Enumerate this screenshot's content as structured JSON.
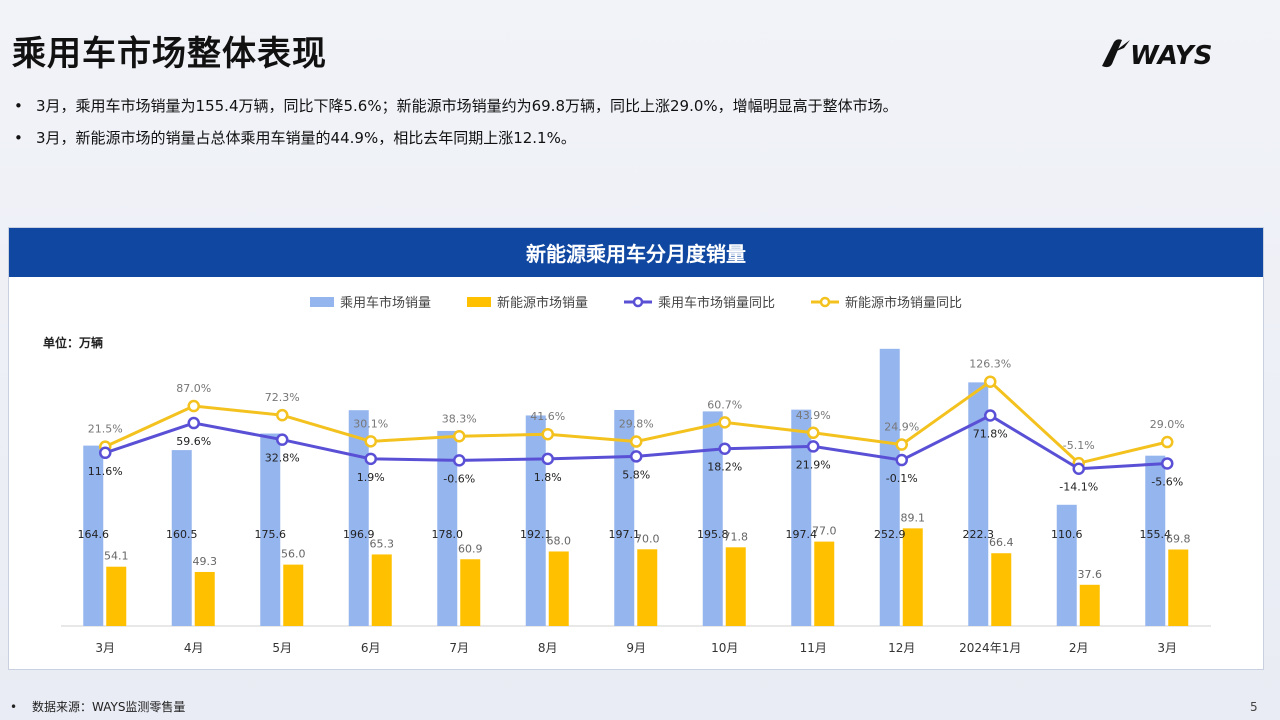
{
  "page": {
    "title": "乘用车市场整体表现",
    "logo_text": "WAYS",
    "bullets": [
      "3月，乘用车市场销量为155.4万辆，同比下降5.6%；新能源市场销量约为69.8万辆，同比上涨29.0%，增幅明显高于整体市场。",
      "3月，新能源市场的销量占总体乘用车销量的44.9%，相比去年同期上涨12.1%。"
    ],
    "source": "数据来源：WAYS监测零售量",
    "page_number": "5",
    "bullet_glyph": "•"
  },
  "colors": {
    "header_bg": "#0f47a1",
    "total_bar": "#95b5ee",
    "nev_bar": "#ffc000",
    "total_line": "#5a50d6",
    "nev_line": "#f4c21f"
  },
  "chart_data": {
    "type": "bar",
    "title": "新能源乘用车分月度销量",
    "unit_label": "单位：万辆",
    "categories": [
      "3月",
      "4月",
      "5月",
      "6月",
      "7月",
      "8月",
      "9月",
      "10月",
      "11月",
      "12月",
      "2024年1月",
      "2月",
      "3月"
    ],
    "series": [
      {
        "name": "乘用车市场销量",
        "kind": "bar",
        "values": [
          164.6,
          160.5,
          175.6,
          196.9,
          178.0,
          192.1,
          197.1,
          195.8,
          197.4,
          252.9,
          222.3,
          110.6,
          155.4
        ]
      },
      {
        "name": "新能源市场销量",
        "kind": "bar",
        "values": [
          54.1,
          49.3,
          56.0,
          65.3,
          60.9,
          68.0,
          70.0,
          71.8,
          77.0,
          89.1,
          66.4,
          37.6,
          69.8
        ]
      },
      {
        "name": "乘用车市场销量同比",
        "kind": "line",
        "unit": "%",
        "values": [
          11.6,
          59.6,
          32.8,
          1.9,
          -0.6,
          1.8,
          5.8,
          18.2,
          21.9,
          -0.1,
          71.8,
          -14.1,
          -5.6
        ]
      },
      {
        "name": "新能源市场销量同比",
        "kind": "line",
        "unit": "%",
        "values": [
          21.5,
          87.0,
          72.3,
          30.1,
          38.3,
          41.6,
          29.8,
          60.7,
          43.9,
          24.9,
          126.3,
          -5.1,
          29.0
        ]
      }
    ],
    "legend_position": "top-center",
    "grid": false
  }
}
